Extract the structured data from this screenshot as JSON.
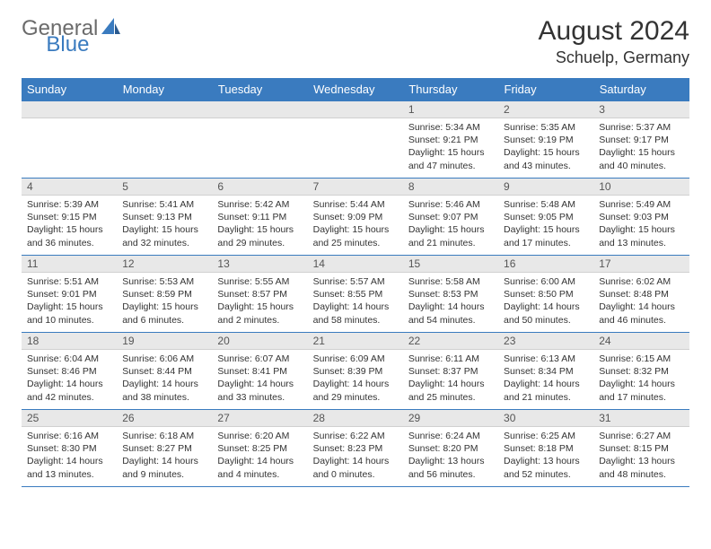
{
  "logo": {
    "text1": "General",
    "text2": "Blue"
  },
  "title": "August 2024",
  "location": "Schuelp, Germany",
  "colors": {
    "header_bg": "#3a7bbf",
    "daynum_bg": "#e8e8e8",
    "border": "#3a7bbf",
    "text": "#333333",
    "logo_gray": "#6b6b6b"
  },
  "dayHeaders": [
    "Sunday",
    "Monday",
    "Tuesday",
    "Wednesday",
    "Thursday",
    "Friday",
    "Saturday"
  ],
  "weeks": [
    [
      {
        "day": null
      },
      {
        "day": null
      },
      {
        "day": null
      },
      {
        "day": null
      },
      {
        "day": 1,
        "sunrise": "5:34 AM",
        "sunset": "9:21 PM",
        "daylight": "15 hours and 47 minutes."
      },
      {
        "day": 2,
        "sunrise": "5:35 AM",
        "sunset": "9:19 PM",
        "daylight": "15 hours and 43 minutes."
      },
      {
        "day": 3,
        "sunrise": "5:37 AM",
        "sunset": "9:17 PM",
        "daylight": "15 hours and 40 minutes."
      }
    ],
    [
      {
        "day": 4,
        "sunrise": "5:39 AM",
        "sunset": "9:15 PM",
        "daylight": "15 hours and 36 minutes."
      },
      {
        "day": 5,
        "sunrise": "5:41 AM",
        "sunset": "9:13 PM",
        "daylight": "15 hours and 32 minutes."
      },
      {
        "day": 6,
        "sunrise": "5:42 AM",
        "sunset": "9:11 PM",
        "daylight": "15 hours and 29 minutes."
      },
      {
        "day": 7,
        "sunrise": "5:44 AM",
        "sunset": "9:09 PM",
        "daylight": "15 hours and 25 minutes."
      },
      {
        "day": 8,
        "sunrise": "5:46 AM",
        "sunset": "9:07 PM",
        "daylight": "15 hours and 21 minutes."
      },
      {
        "day": 9,
        "sunrise": "5:48 AM",
        "sunset": "9:05 PM",
        "daylight": "15 hours and 17 minutes."
      },
      {
        "day": 10,
        "sunrise": "5:49 AM",
        "sunset": "9:03 PM",
        "daylight": "15 hours and 13 minutes."
      }
    ],
    [
      {
        "day": 11,
        "sunrise": "5:51 AM",
        "sunset": "9:01 PM",
        "daylight": "15 hours and 10 minutes."
      },
      {
        "day": 12,
        "sunrise": "5:53 AM",
        "sunset": "8:59 PM",
        "daylight": "15 hours and 6 minutes."
      },
      {
        "day": 13,
        "sunrise": "5:55 AM",
        "sunset": "8:57 PM",
        "daylight": "15 hours and 2 minutes."
      },
      {
        "day": 14,
        "sunrise": "5:57 AM",
        "sunset": "8:55 PM",
        "daylight": "14 hours and 58 minutes."
      },
      {
        "day": 15,
        "sunrise": "5:58 AM",
        "sunset": "8:53 PM",
        "daylight": "14 hours and 54 minutes."
      },
      {
        "day": 16,
        "sunrise": "6:00 AM",
        "sunset": "8:50 PM",
        "daylight": "14 hours and 50 minutes."
      },
      {
        "day": 17,
        "sunrise": "6:02 AM",
        "sunset": "8:48 PM",
        "daylight": "14 hours and 46 minutes."
      }
    ],
    [
      {
        "day": 18,
        "sunrise": "6:04 AM",
        "sunset": "8:46 PM",
        "daylight": "14 hours and 42 minutes."
      },
      {
        "day": 19,
        "sunrise": "6:06 AM",
        "sunset": "8:44 PM",
        "daylight": "14 hours and 38 minutes."
      },
      {
        "day": 20,
        "sunrise": "6:07 AM",
        "sunset": "8:41 PM",
        "daylight": "14 hours and 33 minutes."
      },
      {
        "day": 21,
        "sunrise": "6:09 AM",
        "sunset": "8:39 PM",
        "daylight": "14 hours and 29 minutes."
      },
      {
        "day": 22,
        "sunrise": "6:11 AM",
        "sunset": "8:37 PM",
        "daylight": "14 hours and 25 minutes."
      },
      {
        "day": 23,
        "sunrise": "6:13 AM",
        "sunset": "8:34 PM",
        "daylight": "14 hours and 21 minutes."
      },
      {
        "day": 24,
        "sunrise": "6:15 AM",
        "sunset": "8:32 PM",
        "daylight": "14 hours and 17 minutes."
      }
    ],
    [
      {
        "day": 25,
        "sunrise": "6:16 AM",
        "sunset": "8:30 PM",
        "daylight": "14 hours and 13 minutes."
      },
      {
        "day": 26,
        "sunrise": "6:18 AM",
        "sunset": "8:27 PM",
        "daylight": "14 hours and 9 minutes."
      },
      {
        "day": 27,
        "sunrise": "6:20 AM",
        "sunset": "8:25 PM",
        "daylight": "14 hours and 4 minutes."
      },
      {
        "day": 28,
        "sunrise": "6:22 AM",
        "sunset": "8:23 PM",
        "daylight": "14 hours and 0 minutes."
      },
      {
        "day": 29,
        "sunrise": "6:24 AM",
        "sunset": "8:20 PM",
        "daylight": "13 hours and 56 minutes."
      },
      {
        "day": 30,
        "sunrise": "6:25 AM",
        "sunset": "8:18 PM",
        "daylight": "13 hours and 52 minutes."
      },
      {
        "day": 31,
        "sunrise": "6:27 AM",
        "sunset": "8:15 PM",
        "daylight": "13 hours and 48 minutes."
      }
    ]
  ],
  "labels": {
    "sunrise": "Sunrise:",
    "sunset": "Sunset:",
    "daylight": "Daylight:"
  }
}
